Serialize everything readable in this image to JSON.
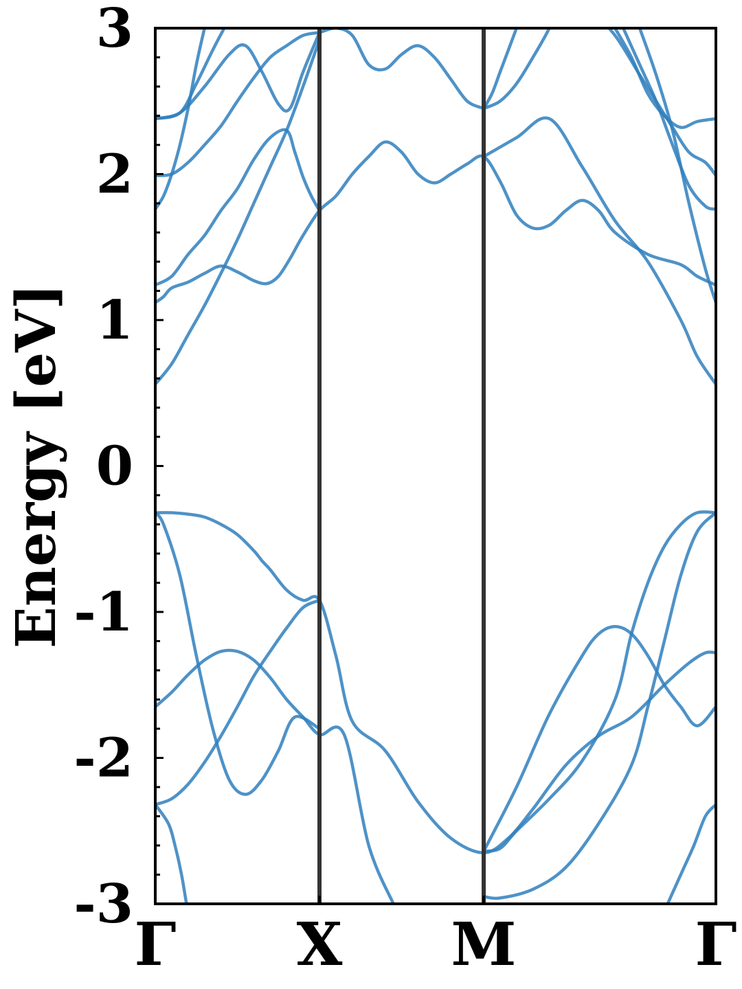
{
  "chart_data": {
    "type": "line",
    "title": "",
    "xlabel": "",
    "ylabel": "Energy [eV]",
    "ylim": [
      -3,
      3
    ],
    "yticks": [
      -3,
      -2,
      -1,
      0,
      1,
      2,
      3
    ],
    "ytick_labels": [
      "-3",
      "-2",
      "-1",
      "0",
      "1",
      "2",
      "3"
    ],
    "y_minor_step": 0.2,
    "xlim": [
      0,
      3.414
    ],
    "high_symmetry_points": [
      {
        "label": "Γ",
        "x": 0
      },
      {
        "label": "X",
        "x": 1.0
      },
      {
        "label": "M",
        "x": 2.0
      },
      {
        "label": "Γ",
        "x": 3.414
      }
    ],
    "grid": false,
    "legend": "none",
    "colors": {
      "bands": "#2f7fbd",
      "symmetry_lines": "#333333",
      "axes": "#000000"
    },
    "series": [
      {
        "x": [
          0,
          0.1,
          0.2,
          0.3,
          0.4,
          0.5,
          0.6,
          0.65,
          0.7,
          0.8,
          0.9,
          1.0,
          1.1,
          1.2,
          1.4,
          1.6,
          1.8,
          2.0,
          2.15,
          2.3,
          2.5,
          2.7,
          2.9,
          3.1,
          3.25,
          3.35,
          3.414
        ],
        "y": [
          -0.32,
          -0.32,
          -0.33,
          -0.35,
          -0.4,
          -0.47,
          -0.58,
          -0.65,
          -0.71,
          -0.85,
          -0.92,
          -0.92,
          -1.3,
          -1.75,
          -1.95,
          -2.3,
          -2.55,
          -2.65,
          -2.55,
          -2.35,
          -2.05,
          -1.85,
          -1.72,
          -1.5,
          -1.35,
          -1.28,
          -1.28
        ]
      },
      {
        "x": [
          0,
          0.05,
          0.15,
          0.25,
          0.35,
          0.45,
          0.55,
          0.65,
          0.75,
          0.85,
          1.0
        ],
        "y": [
          -0.32,
          -0.4,
          -0.75,
          -1.3,
          -1.8,
          -2.15,
          -2.25,
          -2.15,
          -1.95,
          -1.72,
          -1.8
        ]
      },
      {
        "x": [
          0,
          0.1,
          0.2,
          0.3,
          0.4,
          0.5,
          0.6,
          0.7,
          0.8,
          0.9,
          1.0,
          1.15,
          1.3,
          1.45
        ],
        "y": [
          -1.65,
          -1.55,
          -1.43,
          -1.33,
          -1.27,
          -1.27,
          -1.33,
          -1.45,
          -1.6,
          -1.72,
          -1.84,
          -1.84,
          -2.6,
          -3.0
        ]
      },
      {
        "x": [
          0,
          0.1,
          0.2,
          0.3,
          0.4,
          0.5,
          0.6,
          0.7,
          0.8,
          0.9,
          1.0
        ],
        "y": [
          -2.32,
          -2.28,
          -2.18,
          -2.03,
          -1.85,
          -1.65,
          -1.44,
          -1.27,
          -1.11,
          -0.97,
          -0.92
        ]
      },
      {
        "x": [
          0,
          0.08,
          0.12,
          0.16,
          0.19
        ],
        "y": [
          -2.32,
          -2.45,
          -2.6,
          -2.8,
          -3.0
        ]
      },
      {
        "x": [
          2.0,
          2.1,
          2.2,
          2.4,
          2.6,
          2.8,
          2.9,
          3.0,
          3.1,
          3.2,
          3.3,
          3.414
        ],
        "y": [
          -2.64,
          -2.62,
          -2.5,
          -2.28,
          -2.02,
          -1.6,
          -1.15,
          -0.8,
          -0.55,
          -0.4,
          -0.32,
          -0.32
        ]
      },
      {
        "x": [
          2.0,
          2.2,
          2.4,
          2.6,
          2.7,
          2.8,
          2.9,
          3.0,
          3.1,
          3.2,
          3.3,
          3.414
        ],
        "y": [
          -2.64,
          -2.2,
          -1.7,
          -1.3,
          -1.15,
          -1.1,
          -1.15,
          -1.3,
          -1.5,
          -1.65,
          -1.78,
          -1.65
        ]
      },
      {
        "x": [
          2.0,
          2.1,
          2.3,
          2.5,
          2.7,
          2.9,
          3.0,
          3.1,
          3.2,
          3.3,
          3.414
        ],
        "y": [
          -2.95,
          -2.96,
          -2.9,
          -2.75,
          -2.45,
          -2.05,
          -1.65,
          -1.2,
          -0.75,
          -0.45,
          -0.32
        ]
      },
      {
        "x": [
          3.12,
          3.2,
          3.28,
          3.35,
          3.414
        ],
        "y": [
          -3.0,
          -2.8,
          -2.6,
          -2.4,
          -2.32
        ]
      },
      {
        "x": [
          0,
          0.1,
          0.2,
          0.3,
          0.4,
          0.5,
          0.6,
          0.7,
          0.8,
          0.9,
          1.0
        ],
        "y": [
          0.56,
          0.7,
          0.9,
          1.1,
          1.32,
          1.55,
          1.8,
          2.05,
          2.3,
          2.6,
          2.92
        ]
      },
      {
        "x": [
          0,
          0.05,
          0.1,
          0.2,
          0.3,
          0.4,
          0.5,
          0.6,
          0.68,
          0.75,
          0.82,
          0.9,
          1.0,
          1.1,
          1.2,
          1.3,
          1.4,
          1.5,
          1.6,
          1.7,
          1.8,
          1.9,
          2.0,
          2.1,
          2.2,
          2.3,
          2.4,
          2.5,
          2.6,
          2.7,
          2.8,
          3.0,
          3.2,
          3.3,
          3.414
        ],
        "y": [
          1.12,
          1.16,
          1.22,
          1.26,
          1.32,
          1.37,
          1.33,
          1.27,
          1.25,
          1.3,
          1.42,
          1.58,
          1.75,
          1.85,
          2.0,
          2.12,
          2.22,
          2.15,
          2.0,
          1.94,
          2.0,
          2.07,
          2.12,
          1.95,
          1.72,
          1.63,
          1.65,
          1.75,
          1.82,
          1.75,
          1.6,
          1.45,
          1.38,
          1.3,
          1.24
        ]
      },
      {
        "x": [
          0,
          0.1,
          0.2,
          0.3,
          0.4,
          0.5,
          0.6,
          0.7,
          0.8,
          0.85,
          0.9,
          0.95,
          1.0
        ],
        "y": [
          1.24,
          1.3,
          1.45,
          1.58,
          1.75,
          1.9,
          2.1,
          2.25,
          2.3,
          2.15,
          1.98,
          1.85,
          1.75
        ]
      },
      {
        "x": [
          0,
          0.05,
          0.1,
          0.15,
          0.2,
          0.25,
          0.3
        ],
        "y": [
          1.76,
          1.85,
          2.0,
          2.2,
          2.45,
          2.75,
          3.0
        ]
      },
      {
        "x": [
          0,
          0.1,
          0.2,
          0.3,
          0.4,
          0.5,
          0.6,
          0.7,
          0.8,
          0.9,
          1.0
        ],
        "y": [
          1.99,
          2.0,
          2.08,
          2.2,
          2.33,
          2.5,
          2.66,
          2.8,
          2.88,
          2.95,
          2.97
        ]
      },
      {
        "x": [
          0,
          0.15,
          0.25,
          0.35,
          0.42
        ],
        "y": [
          2.38,
          2.42,
          2.62,
          2.85,
          3.0
        ]
      },
      {
        "x": [
          0,
          0.15,
          0.3,
          0.45,
          0.55,
          0.65,
          0.75,
          0.82,
          0.9,
          1.0
        ],
        "y": [
          2.38,
          2.42,
          2.6,
          2.82,
          2.88,
          2.7,
          2.48,
          2.45,
          2.7,
          2.97
        ]
      },
      {
        "x": [
          1.0,
          1.1,
          1.2,
          1.3,
          1.4,
          1.5,
          1.6,
          1.7,
          1.8,
          1.9,
          2.0
        ],
        "y": [
          2.97,
          3.0,
          2.95,
          2.75,
          2.72,
          2.82,
          2.88,
          2.8,
          2.65,
          2.5,
          2.45
        ]
      },
      {
        "x": [
          2.0,
          2.1,
          2.2,
          2.3,
          2.4,
          2.5,
          2.65,
          2.8,
          2.95,
          3.05,
          3.15,
          3.25,
          3.35,
          3.414
        ],
        "y": [
          2.45,
          2.5,
          2.62,
          2.8,
          3.0,
          3.25,
          3.12,
          2.95,
          2.68,
          2.5,
          2.32,
          2.15,
          2.08,
          1.99
        ]
      },
      {
        "x": [
          2.0,
          2.05,
          2.1,
          2.15,
          2.2
        ],
        "y": [
          2.45,
          2.55,
          2.7,
          2.85,
          3.0
        ]
      },
      {
        "x": [
          2.8,
          2.9,
          3.0,
          3.1,
          3.2,
          3.3,
          3.414
        ],
        "y": [
          3.0,
          2.8,
          2.55,
          2.4,
          2.32,
          2.36,
          2.38
        ]
      },
      {
        "x": [
          2.85,
          2.95,
          3.05,
          3.15,
          3.25,
          3.35,
          3.414
        ],
        "y": [
          3.0,
          2.75,
          2.5,
          2.2,
          1.92,
          1.78,
          1.76
        ]
      },
      {
        "x": [
          2.95,
          3.05,
          3.15,
          3.25,
          3.35,
          3.414
        ],
        "y": [
          3.0,
          2.68,
          2.3,
          1.8,
          1.35,
          1.12
        ]
      },
      {
        "x": [
          2.0,
          2.2,
          2.4,
          2.6,
          2.8,
          3.0,
          3.2,
          3.3,
          3.414
        ],
        "y": [
          2.12,
          2.25,
          2.38,
          2.05,
          1.68,
          1.4,
          1.0,
          0.75,
          0.56
        ]
      }
    ]
  }
}
